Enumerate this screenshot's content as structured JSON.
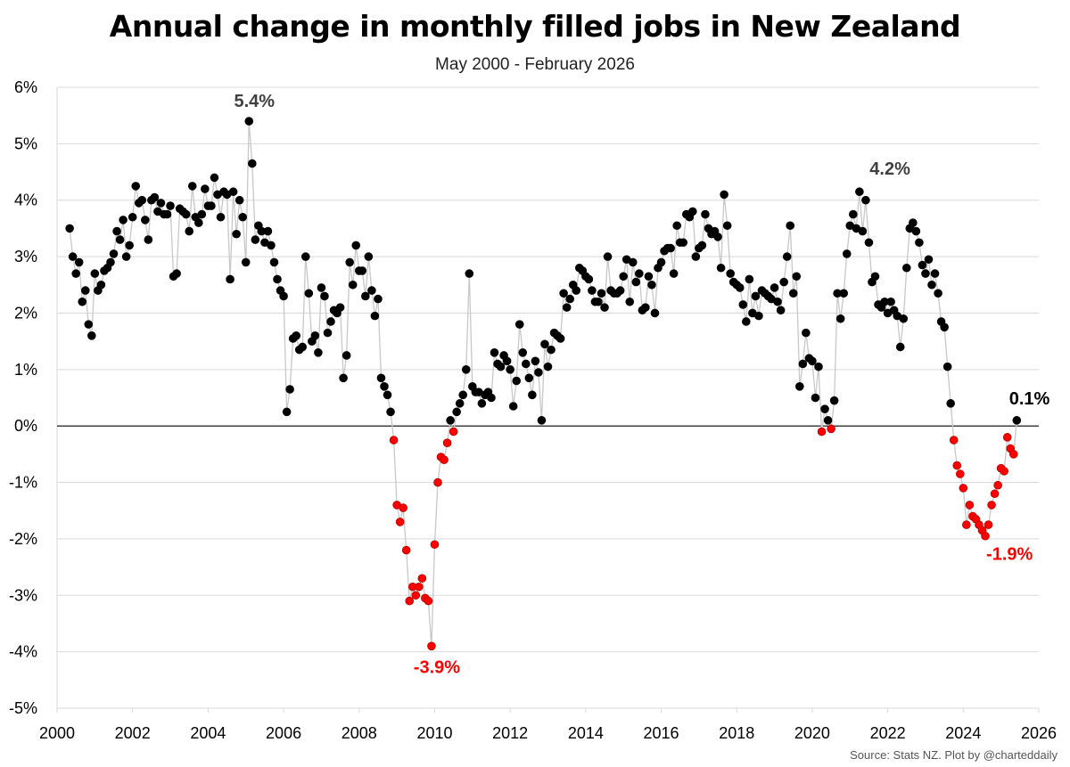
{
  "title": "Annual change in monthly filled jobs in New Zealand",
  "subtitle": "May 2000 - February 2026",
  "source": "Source: Stats NZ. Plot by @charteddaily",
  "colors": {
    "positive": "#000000",
    "negative": "#ff0000",
    "negative_edge": "#b30000",
    "line": "#c8c8c8",
    "grid": "#d9d9d9",
    "annotation_dark": "#404040"
  },
  "chart_data": {
    "type": "line",
    "title": "Annual change in monthly filled jobs in New Zealand",
    "subtitle": "May 2000 - February 2026",
    "xlabel": "",
    "ylabel": "",
    "xlim": [
      2000,
      2026
    ],
    "ylim": [
      -5,
      6
    ],
    "grid": "horizontal",
    "x_ticks": [
      "2000",
      "2002",
      "2004",
      "2006",
      "2008",
      "2010",
      "2012",
      "2014",
      "2016",
      "2018",
      "2020",
      "2022",
      "2024",
      "2026"
    ],
    "y_ticks": [
      "6%",
      "5%",
      "4%",
      "3%",
      "2%",
      "1%",
      "0%",
      "-1%",
      "-2%",
      "-3%",
      "-4%",
      "-5%"
    ],
    "series": [
      {
        "name": "Annual change in monthly filled jobs (%)",
        "start": "2000-05",
        "frequency": "monthly",
        "values": [
          3.5,
          3.0,
          2.7,
          2.9,
          2.2,
          2.4,
          1.8,
          1.6,
          2.7,
          2.4,
          2.5,
          2.75,
          2.8,
          2.9,
          3.05,
          3.45,
          3.3,
          3.65,
          3.0,
          3.2,
          3.7,
          4.25,
          3.95,
          4.0,
          3.65,
          3.3,
          4.0,
          4.05,
          3.8,
          3.95,
          3.75,
          3.75,
          3.9,
          2.65,
          2.7,
          3.85,
          3.8,
          3.75,
          3.45,
          4.25,
          3.7,
          3.6,
          3.75,
          4.2,
          3.9,
          3.9,
          4.4,
          4.1,
          3.7,
          4.15,
          4.1,
          2.6,
          4.15,
          3.4,
          4.0,
          3.7,
          2.9,
          5.4,
          4.65,
          3.3,
          3.55,
          3.45,
          3.25,
          3.45,
          3.2,
          2.9,
          2.6,
          2.4,
          2.3,
          0.25,
          0.65,
          1.55,
          1.6,
          1.35,
          1.4,
          3.0,
          2.35,
          1.5,
          1.6,
          1.3,
          2.45,
          2.3,
          1.65,
          1.85,
          2.05,
          2.0,
          2.1,
          0.85,
          1.25,
          2.9,
          2.5,
          3.2,
          2.75,
          2.75,
          2.3,
          3.0,
          2.4,
          1.95,
          2.25,
          0.85,
          0.7,
          0.55,
          0.25,
          -0.25,
          -1.4,
          -1.7,
          -1.45,
          -2.2,
          -3.1,
          -2.85,
          -3.0,
          -2.85,
          -2.7,
          -3.05,
          -3.1,
          -3.9,
          -2.1,
          -1.0,
          -0.55,
          -0.6,
          -0.3,
          0.1,
          -0.1,
          0.25,
          0.4,
          0.55,
          1.0,
          2.7,
          0.7,
          0.6,
          0.6,
          0.4,
          0.55,
          0.6,
          0.5,
          1.3,
          1.1,
          1.05,
          1.25,
          1.15,
          1.0,
          0.35,
          0.8,
          1.8,
          1.3,
          1.1,
          0.85,
          0.55,
          1.15,
          0.95,
          0.1,
          1.45,
          1.05,
          1.35,
          1.65,
          1.6,
          1.55,
          2.35,
          2.1,
          2.25,
          2.5,
          2.4,
          2.8,
          2.75,
          2.65,
          2.6,
          2.4,
          2.2,
          2.2,
          2.35,
          2.1,
          3.0,
          2.4,
          2.35,
          2.35,
          2.4,
          2.65,
          2.95,
          2.2,
          2.9,
          2.55,
          2.7,
          2.05,
          2.1,
          2.65,
          2.5,
          2.0,
          2.8,
          2.9,
          3.1,
          3.15,
          3.15,
          2.7,
          3.55,
          3.25,
          3.25,
          3.75,
          3.7,
          3.8,
          3.0,
          3.15,
          3.2,
          3.75,
          3.5,
          3.4,
          3.45,
          3.35,
          2.8,
          4.1,
          3.55,
          2.7,
          2.55,
          2.5,
          2.45,
          2.15,
          1.85,
          2.6,
          2.0,
          2.3,
          1.95,
          2.4,
          2.35,
          2.3,
          2.25,
          2.45,
          2.2,
          2.05,
          2.55,
          3.0,
          3.55,
          2.35,
          2.65,
          0.7,
          1.1,
          1.65,
          1.2,
          1.15,
          0.5,
          1.05,
          -0.1,
          0.3,
          0.1,
          -0.05,
          0.45,
          2.35,
          1.9,
          2.35,
          3.05,
          3.55,
          3.75,
          3.5,
          4.15,
          3.45,
          4.0,
          3.25,
          2.55,
          2.65,
          2.15,
          2.1,
          2.2,
          2.0,
          2.2,
          2.05,
          1.95,
          1.4,
          1.9,
          2.8,
          3.5,
          3.6,
          3.45,
          3.25,
          2.85,
          2.7,
          2.95,
          2.5,
          2.7,
          2.35,
          1.85,
          1.75,
          1.05,
          0.4,
          -0.25,
          -0.7,
          -0.85,
          -1.1,
          -1.75,
          -1.4,
          -1.6,
          -1.65,
          -1.75,
          -1.85,
          -1.95,
          -1.75,
          -1.4,
          -1.2,
          -1.05,
          -0.75,
          -0.8,
          -0.2,
          -0.4,
          -0.5,
          0.1
        ]
      }
    ],
    "annotations": [
      {
        "label": "5.4%",
        "x": "2005-02",
        "y": 5.4,
        "style": "dark"
      },
      {
        "label": "-3.9%",
        "x": "2009-12",
        "y": -3.9,
        "style": "negative"
      },
      {
        "label": "4.2%",
        "x": "2021-12",
        "y": 4.2,
        "style": "dark"
      },
      {
        "label": "-1.9%",
        "x": "2025-02",
        "y": -1.9,
        "style": "negative"
      },
      {
        "label": "0.1%",
        "x": "2026-02",
        "y": 0.1,
        "style": "black"
      }
    ]
  }
}
